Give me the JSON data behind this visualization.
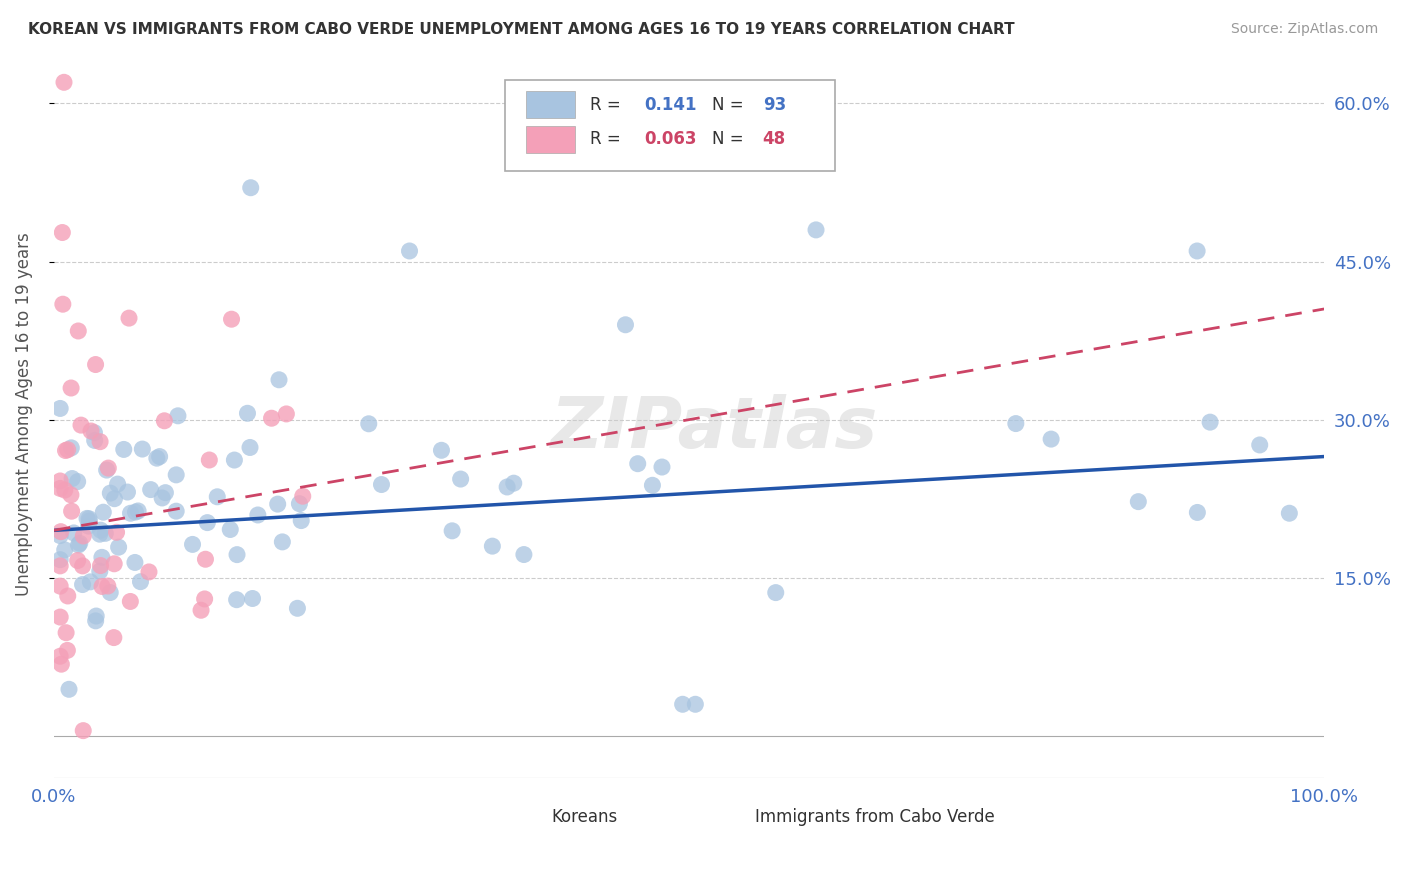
{
  "title": "KOREAN VS IMMIGRANTS FROM CABO VERDE UNEMPLOYMENT AMONG AGES 16 TO 19 YEARS CORRELATION CHART",
  "source": "Source: ZipAtlas.com",
  "ylabel": "Unemployment Among Ages 16 to 19 years",
  "ytick_labels_right": [
    "60.0%",
    "45.0%",
    "30.0%",
    "15.0%"
  ],
  "ytick_values": [
    0.6,
    0.45,
    0.3,
    0.15
  ],
  "xmin": 0.0,
  "xmax": 1.0,
  "ymin": -0.04,
  "ymax": 0.65,
  "korean_R": "0.141",
  "korean_N": "93",
  "cabo_verde_R": "0.063",
  "cabo_verde_N": "48",
  "korean_color": "#a8c4e0",
  "cabo_verde_color": "#f4a0b8",
  "korean_line_color": "#2255aa",
  "cabo_verde_line_color": "#cc4466",
  "watermark": "ZIPatlas",
  "title_color": "#333333",
  "axis_label_color": "#4472c4",
  "legend_R_color": "#4472c4",
  "legend_cv_R_color": "#cc4466",
  "legend_N_color": "#cc4466"
}
